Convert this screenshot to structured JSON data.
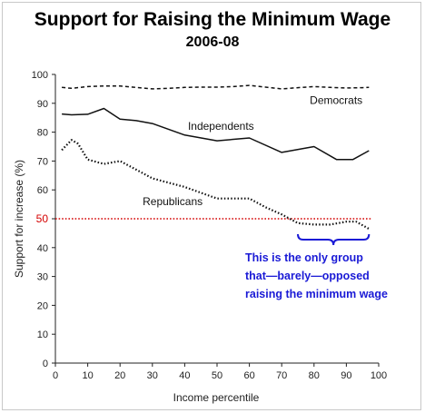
{
  "chart_data": {
    "type": "line",
    "title": "Support for Raising the Minimum Wage",
    "subtitle": "2006-08",
    "xlabel": "Income percentile",
    "ylabel": "Support for increase (%)",
    "xlim": [
      0,
      100
    ],
    "ylim": [
      0,
      100
    ],
    "xticks": [
      "0",
      "10",
      "20",
      "30",
      "40",
      "50",
      "60",
      "70",
      "80",
      "90",
      "100"
    ],
    "yticks": [
      "0",
      "10",
      "20",
      "30",
      "40",
      "50",
      "60",
      "70",
      "80",
      "90",
      "100"
    ],
    "grid": false,
    "series": [
      {
        "name": "Democrats",
        "style": "dashed",
        "x": [
          2,
          5,
          10,
          15,
          20,
          25,
          30,
          35,
          40,
          45,
          50,
          55,
          60,
          65,
          70,
          75,
          80,
          85,
          90,
          95,
          97
        ],
        "y": [
          95.5,
          95.2,
          95.8,
          96,
          96,
          95.5,
          95,
          95.2,
          95.5,
          95.6,
          95.6,
          95.8,
          96.2,
          95.6,
          95,
          95.4,
          95.8,
          95.5,
          95.3,
          95.4,
          95.5
        ]
      },
      {
        "name": "Independents",
        "style": "solid",
        "x": [
          2,
          5,
          10,
          15,
          20,
          25,
          30,
          40,
          50,
          60,
          70,
          80,
          87,
          92,
          97
        ],
        "y": [
          86.3,
          86,
          86.2,
          88.2,
          84.5,
          84,
          83,
          79,
          77,
          78,
          73,
          75,
          70.5,
          70.5,
          73.6
        ]
      },
      {
        "name": "Republicans",
        "style": "dotted",
        "x": [
          2,
          5,
          7,
          10,
          15,
          20,
          25,
          30,
          40,
          50,
          55,
          60,
          65,
          70,
          75,
          80,
          85,
          90,
          93,
          97
        ],
        "y": [
          73.8,
          77.3,
          76,
          70.5,
          69,
          70,
          67,
          64,
          61,
          57,
          57,
          57,
          54,
          51.5,
          48.5,
          48,
          48,
          49,
          49,
          46.5
        ]
      }
    ],
    "reference_line": {
      "y": 50,
      "label": "50",
      "color": "#d40000",
      "style": "dotted"
    },
    "annotation": {
      "lines": [
        "This is the only group",
        "that—barely—opposed",
        "raising the minimum wage"
      ],
      "color": "#1a1ad6",
      "bracket_x": [
        75,
        97
      ]
    }
  }
}
